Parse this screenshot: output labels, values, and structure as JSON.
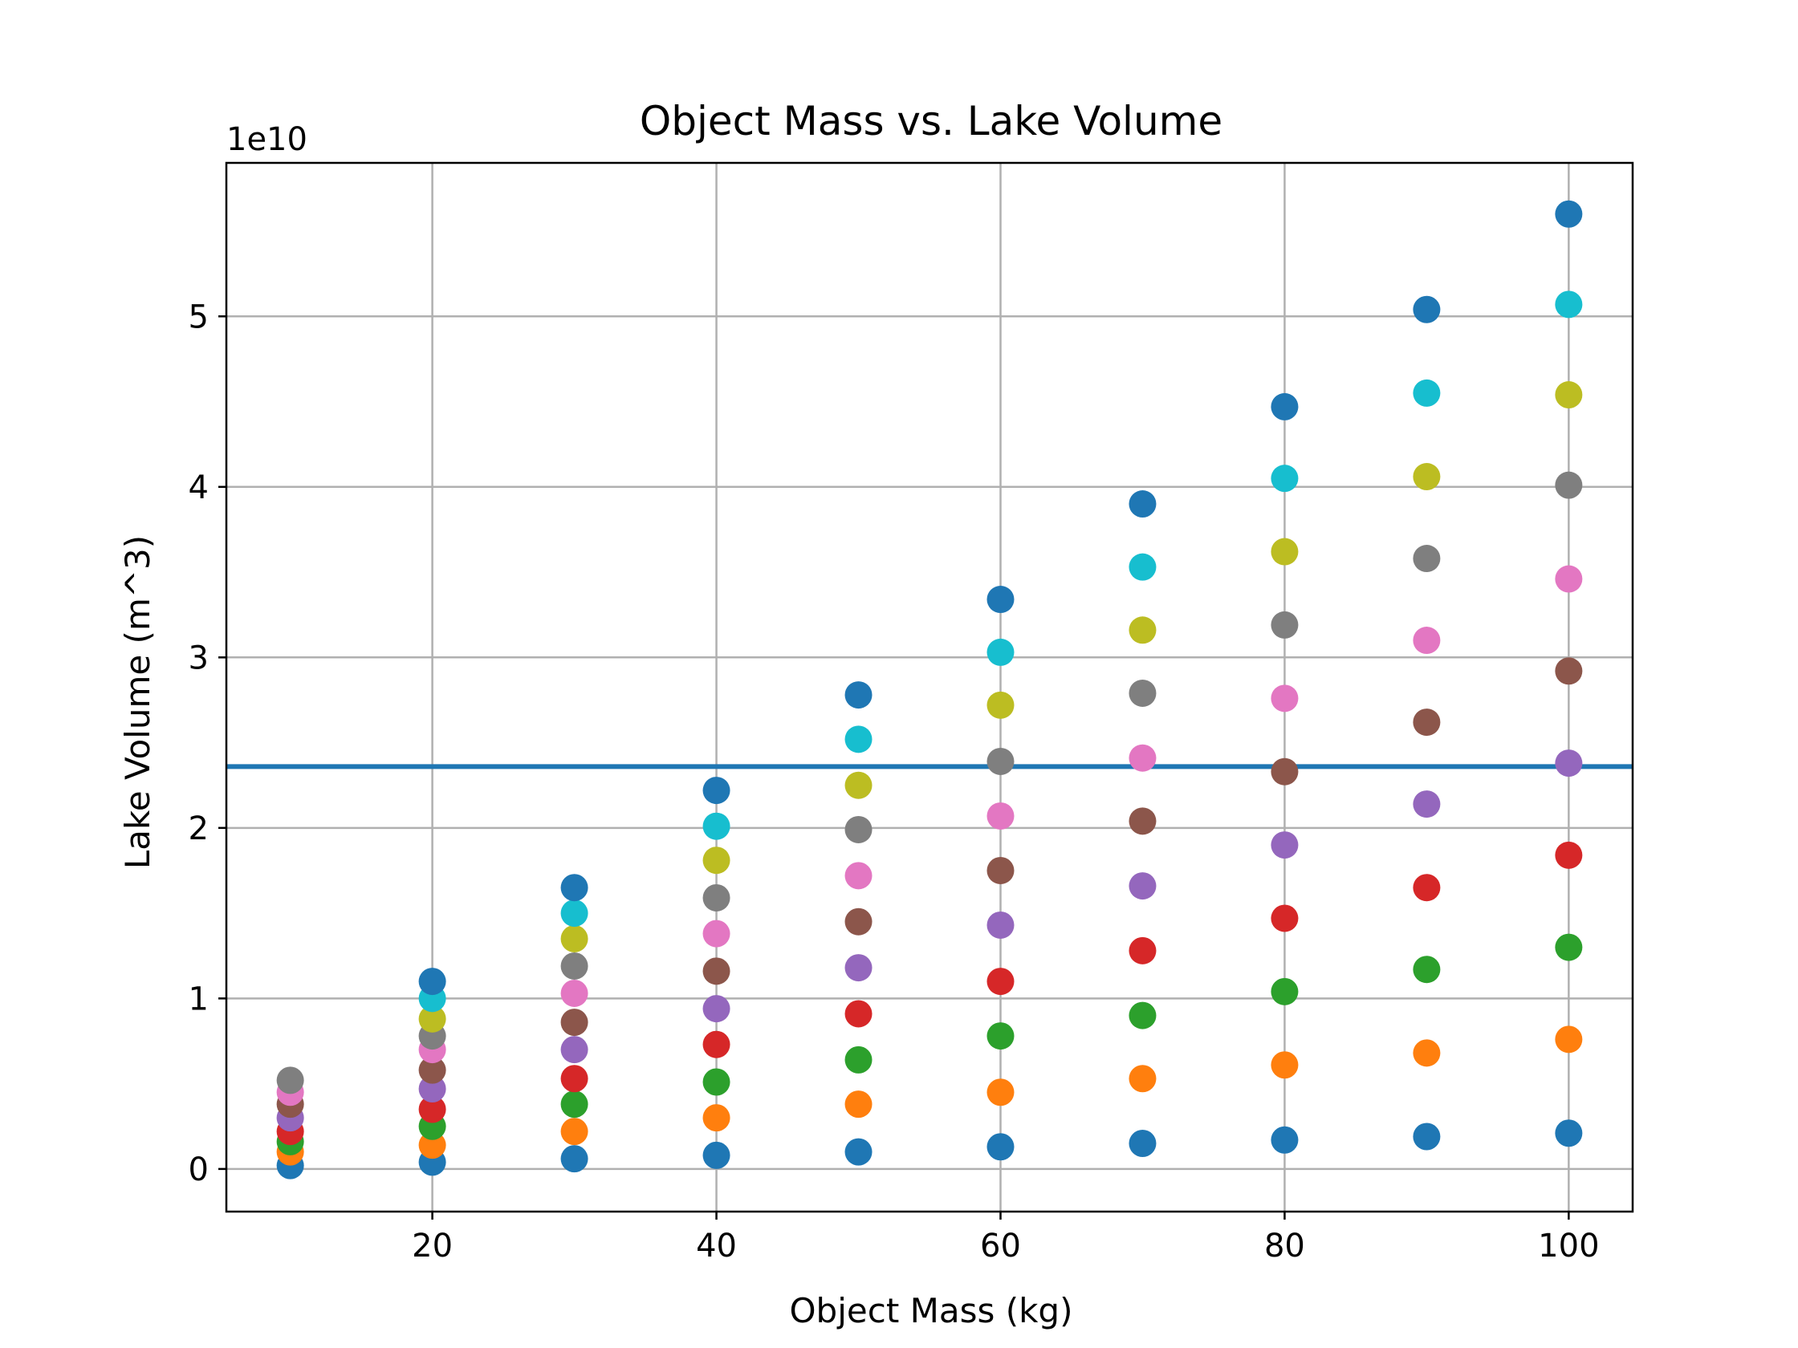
{
  "chart_data": {
    "type": "scatter",
    "title": "Object Mass vs. Lake Volume",
    "xlabel": "Object Mass (kg)",
    "ylabel": "Lake Volume (m^3)",
    "y_offset_label": "1e10",
    "xlim": [
      5.5,
      104.5
    ],
    "ylim": [
      -0.25,
      5.9
    ],
    "x_ticks": [
      20,
      40,
      60,
      80,
      100
    ],
    "x_tick_labels": [
      "20",
      "40",
      "60",
      "80",
      "100"
    ],
    "y_ticks": [
      0,
      1,
      2,
      3,
      4,
      5
    ],
    "y_tick_labels": [
      "0",
      "1",
      "2",
      "3",
      "4",
      "5"
    ],
    "grid": true,
    "reference_line": {
      "y": 2.36,
      "color": "#1f77b4"
    },
    "palette": [
      "#1f77b4",
      "#ff7f0e",
      "#2ca02c",
      "#d62728",
      "#9467bd",
      "#8c564b",
      "#e377c2",
      "#7f7f7f",
      "#bcbd22",
      "#17becf"
    ],
    "groups": [
      {
        "x": 10,
        "values": [
          0.02,
          0.1,
          0.16,
          0.22,
          0.3,
          0.38,
          0.45,
          0.52
        ]
      },
      {
        "x": 20,
        "values": [
          0.04,
          0.14,
          0.25,
          0.35,
          0.47,
          0.58,
          0.7,
          0.78,
          0.88,
          1.0,
          1.1
        ]
      },
      {
        "x": 30,
        "values": [
          0.06,
          0.22,
          0.38,
          0.53,
          0.7,
          0.86,
          1.03,
          1.19,
          1.35,
          1.5,
          1.65
        ]
      },
      {
        "x": 40,
        "values": [
          0.08,
          0.3,
          0.51,
          0.73,
          0.94,
          1.16,
          1.38,
          1.59,
          1.81,
          2.01,
          2.22
        ]
      },
      {
        "x": 50,
        "values": [
          0.1,
          0.38,
          0.64,
          0.91,
          1.18,
          1.45,
          1.72,
          1.99,
          2.25,
          2.52,
          2.78
        ]
      },
      {
        "x": 60,
        "values": [
          0.13,
          0.45,
          0.78,
          1.1,
          1.43,
          1.75,
          2.07,
          2.39,
          2.72,
          3.03,
          3.34
        ]
      },
      {
        "x": 70,
        "values": [
          0.15,
          0.53,
          0.9,
          1.28,
          1.66,
          2.04,
          2.41,
          2.79,
          3.16,
          3.53,
          3.9
        ]
      },
      {
        "x": 80,
        "values": [
          0.17,
          0.61,
          1.04,
          1.47,
          1.9,
          2.33,
          2.76,
          3.19,
          3.62,
          4.05,
          4.47
        ]
      },
      {
        "x": 90,
        "values": [
          0.19,
          0.68,
          1.17,
          1.65,
          2.14,
          2.62,
          3.1,
          3.58,
          4.06,
          4.55,
          5.04
        ]
      },
      {
        "x": 100,
        "values": [
          0.21,
          0.76,
          1.3,
          1.84,
          2.38,
          2.92,
          3.46,
          4.01,
          4.54,
          5.07,
          5.6
        ]
      }
    ]
  }
}
